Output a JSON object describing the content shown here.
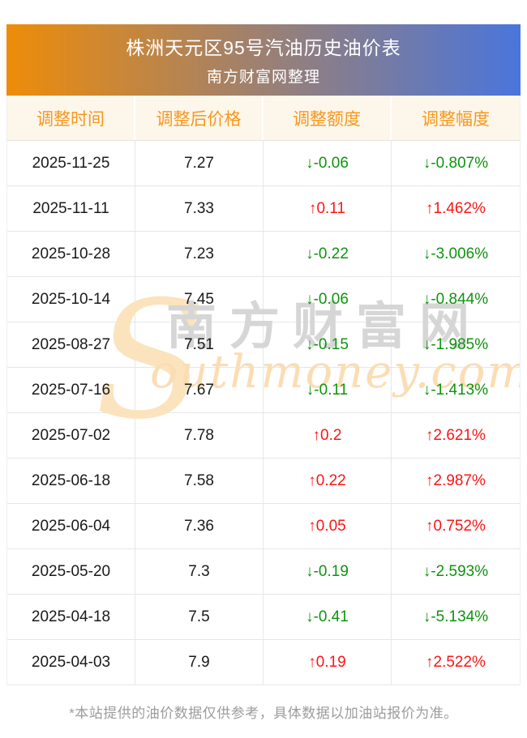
{
  "banner": {
    "title": "株洲天元区95号汽油历史油价表",
    "subtitle": "南方财富网整理"
  },
  "table": {
    "columns": [
      "调整时间",
      "调整后价格",
      "调整额度",
      "调整幅度"
    ],
    "rows": [
      {
        "date": "2025-11-25",
        "price": "7.27",
        "change": "↓-0.06",
        "pct": "↓-0.807%",
        "dir": "down"
      },
      {
        "date": "2025-11-11",
        "price": "7.33",
        "change": "↑0.11",
        "pct": "↑1.462%",
        "dir": "up"
      },
      {
        "date": "2025-10-28",
        "price": "7.23",
        "change": "↓-0.22",
        "pct": "↓-3.006%",
        "dir": "down"
      },
      {
        "date": "2025-10-14",
        "price": "7.45",
        "change": "↓-0.06",
        "pct": "↓-0.844%",
        "dir": "down"
      },
      {
        "date": "2025-08-27",
        "price": "7.51",
        "change": "↓-0.15",
        "pct": "↓-1.985%",
        "dir": "down"
      },
      {
        "date": "2025-07-16",
        "price": "7.67",
        "change": "↓-0.11",
        "pct": "↓-1.413%",
        "dir": "down"
      },
      {
        "date": "2025-07-02",
        "price": "7.78",
        "change": "↑0.2",
        "pct": "↑2.621%",
        "dir": "up"
      },
      {
        "date": "2025-06-18",
        "price": "7.58",
        "change": "↑0.22",
        "pct": "↑2.987%",
        "dir": "up"
      },
      {
        "date": "2025-06-04",
        "price": "7.36",
        "change": "↑0.05",
        "pct": "↑0.752%",
        "dir": "up"
      },
      {
        "date": "2025-05-20",
        "price": "7.3",
        "change": "↓-0.19",
        "pct": "↓-2.593%",
        "dir": "down"
      },
      {
        "date": "2025-04-18",
        "price": "7.5",
        "change": "↓-0.41",
        "pct": "↓-5.134%",
        "dir": "down"
      },
      {
        "date": "2025-04-03",
        "price": "7.9",
        "change": "↑0.19",
        "pct": "↑2.522%",
        "dir": "up"
      }
    ]
  },
  "watermark": {
    "initial": "S",
    "cn": "南方财富网",
    "en": "outhmoney.com"
  },
  "footer": {
    "note": "*本站提供的油价数据仅供参考，具体数据以加油站报价为准。"
  },
  "colors": {
    "banner_gradient_from": "#ee8c09",
    "banner_gradient_to": "#4a75dc",
    "banner_text": "#ffffff",
    "table_header_bg": "#fdf6eb",
    "table_header_text": "#f8981d",
    "grid_line": "#e3e7eb",
    "body_text": "#1a1a1a",
    "up": "#fb1515",
    "down": "#0f930f",
    "watermark_gray": "#d6d6d6",
    "watermark_cream": "#fbddb4",
    "footer_text": "#9c9c9c"
  }
}
